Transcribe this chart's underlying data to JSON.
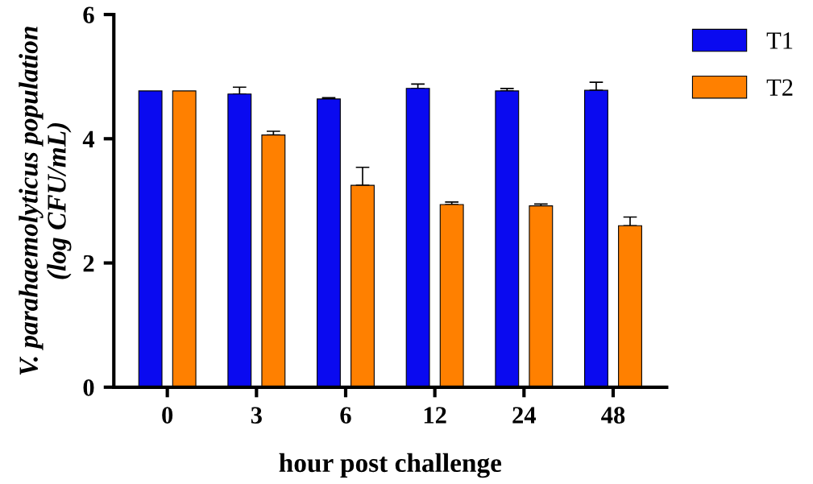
{
  "chart_data": {
    "type": "bar",
    "xlabel": "hour post challenge",
    "ylabel": "V. parahaemolyticus population\n(log CFU/mL)",
    "categories": [
      "0",
      "3",
      "6",
      "12",
      "24",
      "48"
    ],
    "series": [
      {
        "name": "T1",
        "color": "#0a0af0",
        "values": [
          4.77,
          4.72,
          4.64,
          4.81,
          4.77,
          4.78
        ],
        "errors": [
          null,
          [
            4.72,
            4.83
          ],
          [
            4.64,
            4.66
          ],
          [
            4.81,
            4.88
          ],
          [
            4.77,
            4.81
          ],
          [
            4.78,
            4.91
          ]
        ]
      },
      {
        "name": "T2",
        "color": "#ff8000",
        "values": [
          4.77,
          4.06,
          3.25,
          2.94,
          2.92,
          2.6
        ],
        "errors": [
          null,
          [
            4.06,
            4.12
          ],
          [
            3.25,
            3.54
          ],
          [
            2.94,
            2.98
          ],
          [
            2.92,
            2.95
          ],
          [
            2.6,
            2.74
          ]
        ]
      }
    ],
    "ylim": [
      0,
      6
    ],
    "yticks": [
      0,
      2,
      4,
      6
    ],
    "grid": false,
    "legend": "top right"
  }
}
